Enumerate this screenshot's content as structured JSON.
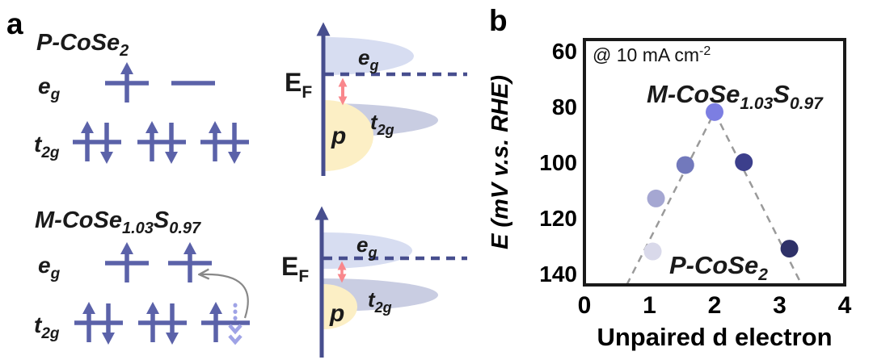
{
  "chart_data": {
    "type": "scatter",
    "title": "",
    "annotation": {
      "main": "@ 10 mA cm",
      "sup": "-2"
    },
    "xlabel": "Unpaired d electron",
    "ylabel": "E (mV v.s. RHE)",
    "xlim": [
      0,
      4
    ],
    "ylim": [
      144,
      56
    ],
    "y_axis_inverted": true,
    "grid": false,
    "x_ticks": [
      "0",
      "1",
      "2",
      "3",
      "4"
    ],
    "x_tick_values": [
      0,
      1,
      2,
      3,
      4
    ],
    "y_ticks": [
      "60",
      "80",
      "100",
      "120",
      "140"
    ],
    "y_tick_values": [
      60,
      80,
      100,
      120,
      140
    ],
    "points": [
      {
        "x": 1.05,
        "y": 132,
        "color": "#d9d9ea"
      },
      {
        "x": 1.1,
        "y": 113,
        "color": "#a5a7d2"
      },
      {
        "x": 1.55,
        "y": 101,
        "color": "#7279bc"
      },
      {
        "x": 2.0,
        "y": 82,
        "color": "#7c7ee2"
      },
      {
        "x": 2.45,
        "y": 100,
        "color": "#3c3f8c"
      },
      {
        "x": 3.15,
        "y": 131,
        "color": "#2e3168"
      }
    ],
    "point_radius": 11,
    "guide_lines": [
      {
        "x1": 0.65,
        "y1": 144,
        "x2": 2.0,
        "y2": 82
      },
      {
        "x1": 2.0,
        "y1": 82,
        "x2": 3.34,
        "y2": 144
      }
    ],
    "guide_line_color": "#9a9a9a",
    "series_labels": [
      {
        "main": "M-CoSe",
        "sub": "1.03",
        "main2": "S",
        "sub2": "0.97",
        "color": "#8a8ce6"
      },
      {
        "main": "P-CoSe",
        "sub": "2",
        "color": "#8c8c8c"
      }
    ]
  },
  "panel_a": {
    "panel_label": "a",
    "colors": {
      "orbital": "#5b62a9",
      "dashed_electron": "#9fa3e6",
      "transfer_arrow": "#888888",
      "dos_axis": "#474e8e",
      "fermi_line": "#474e8e",
      "eg_band": "#d7ddf1",
      "t2g_band": "#c9cde2",
      "p_band": "#fcefc5",
      "gap_arrow": "#f9878c"
    },
    "structures": [
      {
        "title": {
          "main": "P-CoSe",
          "sub": "2"
        },
        "eg_label": {
          "main": "e",
          "sub": "g"
        },
        "t2g_label": {
          "main": "t",
          "sub": "2g"
        },
        "eg_orbitals": [
          "up",
          "empty"
        ],
        "t2g_orbitals": [
          "paired",
          "paired",
          "paired"
        ]
      },
      {
        "title": {
          "main": "M-CoSe",
          "sub": "1.03",
          "main2": "S",
          "sub2": "0.97"
        },
        "eg_label": {
          "main": "e",
          "sub": "g"
        },
        "t2g_label": {
          "main": "t",
          "sub": "2g"
        },
        "eg_orbitals": [
          "up",
          "up"
        ],
        "t2g_orbitals": [
          "paired",
          "paired",
          "up_dashed_down"
        ],
        "electron_transfer": "t2g third orbital spin-down electron transfers to second eg orbital"
      }
    ],
    "dos": [
      {
        "ef_label": {
          "main": "E",
          "sub": "F"
        },
        "eg_label": {
          "main": "e",
          "sub": "g"
        },
        "t2g_label": {
          "main": "t",
          "sub": "2g"
        },
        "p_label": "p",
        "eg_position": "above_EF",
        "gap": "large"
      },
      {
        "ef_label": {
          "main": "E",
          "sub": "F"
        },
        "eg_label": {
          "main": "e",
          "sub": "g"
        },
        "t2g_label": {
          "main": "t",
          "sub": "2g"
        },
        "p_label": "p",
        "eg_position": "straddles_EF",
        "gap": "small"
      }
    ]
  },
  "panel_b": {
    "panel_label": "b"
  }
}
